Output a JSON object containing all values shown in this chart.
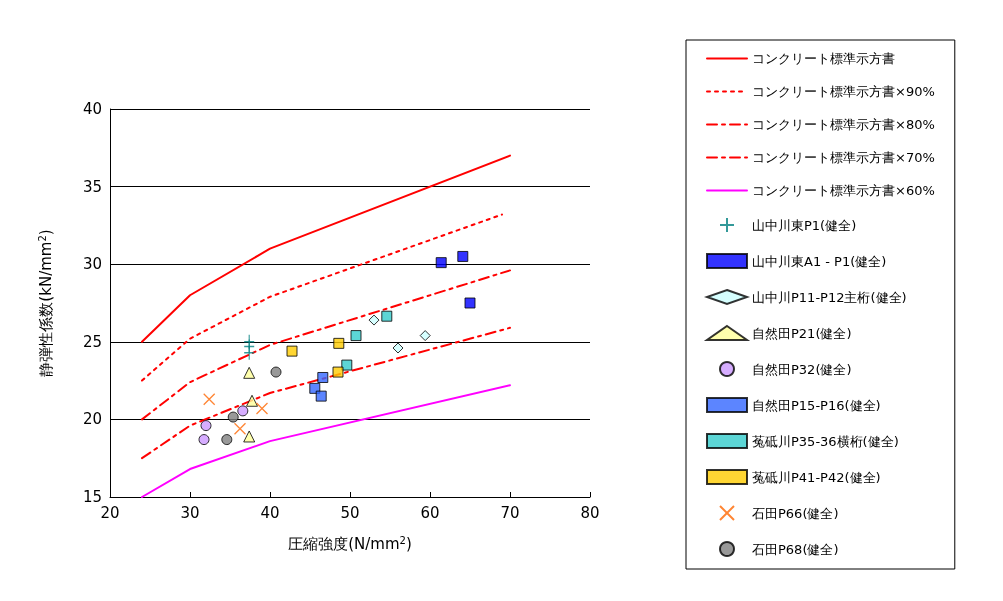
{
  "chart_data": {
    "type": "scatter",
    "xlabel": "圧縮強度(N/mm$^{2}$)",
    "ylabel": "静弾性係数(kN/mm$^{2}$)",
    "xlim": [
      20,
      80
    ],
    "xticks": [
      20,
      30,
      40,
      50,
      60,
      70,
      80
    ],
    "ylim": [
      15,
      40
    ],
    "yticks": [
      15,
      20,
      25,
      30,
      35,
      40
    ],
    "grid": "y",
    "legend": "right",
    "series": [
      {
        "name": "コンクリート標準示方書",
        "type": "line",
        "color": "#ff0000",
        "line_style": "solid",
        "marker": "none",
        "x": [
          24,
          30,
          40,
          70
        ],
        "values": [
          25,
          28,
          31,
          37
        ]
      },
      {
        "name": "コンクリート標準示方書×90%",
        "type": "line",
        "color": "#ff0000",
        "line_style": "dotted",
        "marker": "none",
        "x": [
          24,
          30,
          40,
          69
        ],
        "values": [
          22.5,
          25.2,
          27.9,
          33.2
        ]
      },
      {
        "name": "コンクリート標準示方書×80%",
        "type": "line",
        "color": "#ff0000",
        "line_style": "dashed",
        "marker": "none",
        "x": [
          24,
          30,
          40,
          70
        ],
        "values": [
          20,
          22.4,
          24.8,
          29.6
        ]
      },
      {
        "name": "コンクリート標準示方書×70%",
        "type": "line",
        "color": "#ff0000",
        "line_style": "dashed",
        "marker": "none",
        "x": [
          24,
          30,
          40,
          70
        ],
        "values": [
          17.5,
          19.6,
          21.7,
          25.9
        ]
      },
      {
        "name": "コンクリート標準示方書×60%",
        "type": "line",
        "color": "#ff00ff",
        "line_style": "solid",
        "marker": "none",
        "x": [
          24,
          30,
          40,
          70
        ],
        "values": [
          15,
          16.8,
          18.6,
          22.2
        ]
      },
      {
        "name": "山中川東P1(健全)",
        "color": "#008080",
        "marker": "cross",
        "x": [
          37.4,
          37.4,
          37.4
        ],
        "values": [
          25.0,
          24.7,
          24.3
        ]
      },
      {
        "name": "山中川東A1 - P1(健全)",
        "color": "#0000ff",
        "marker": "square",
        "x": [
          64.1,
          61.4,
          65.0
        ],
        "values": [
          30.5,
          30.1,
          27.5
        ]
      },
      {
        "name": "山中川P11-P12主桁(健全)",
        "color": "#ccffff",
        "marker": "diamond",
        "x": [
          53.0,
          59.4,
          56.0
        ],
        "values": [
          26.4,
          25.4,
          24.6
        ]
      },
      {
        "name": "自然田P21(健全)",
        "color": "#ffff99",
        "marker": "triangle",
        "x": [
          37.4,
          37.75,
          37.4
        ],
        "values": [
          23.0,
          21.2,
          18.9
        ]
      },
      {
        "name": "自然田P32(健全)",
        "color": "#cc99ff",
        "marker": "circle",
        "x": [
          32.0,
          31.75,
          36.6
        ],
        "values": [
          19.6,
          18.7,
          20.55
        ]
      },
      {
        "name": "自然田P15-P16(健全)",
        "color": "#3366ff",
        "marker": "square",
        "x": [
          46.6,
          45.6,
          46.4
        ],
        "values": [
          22.7,
          22.0,
          21.5
        ]
      },
      {
        "name": "菟砥川P35-36横桁(健全)",
        "color": "#33cccc",
        "marker": "square",
        "x": [
          54.6,
          50.75,
          49.6
        ],
        "values": [
          26.65,
          25.4,
          23.5
        ]
      },
      {
        "name": "菟砥川P41-P42(健全)",
        "color": "#ffcc00",
        "marker": "square",
        "x": [
          42.75,
          48.6,
          48.5
        ],
        "values": [
          24.4,
          24.9,
          23.05
        ]
      },
      {
        "name": "石田P66(健全)",
        "color": "#ff6600",
        "marker": "x",
        "x": [
          32.4,
          39.0,
          36.25
        ],
        "values": [
          21.3,
          20.7,
          19.4
        ]
      },
      {
        "name": "石田P68(健全)",
        "color": "#808080",
        "marker": "circle",
        "x": [
          40.75,
          35.4,
          34.6
        ],
        "values": [
          23.05,
          20.15,
          18.7
        ]
      }
    ]
  }
}
